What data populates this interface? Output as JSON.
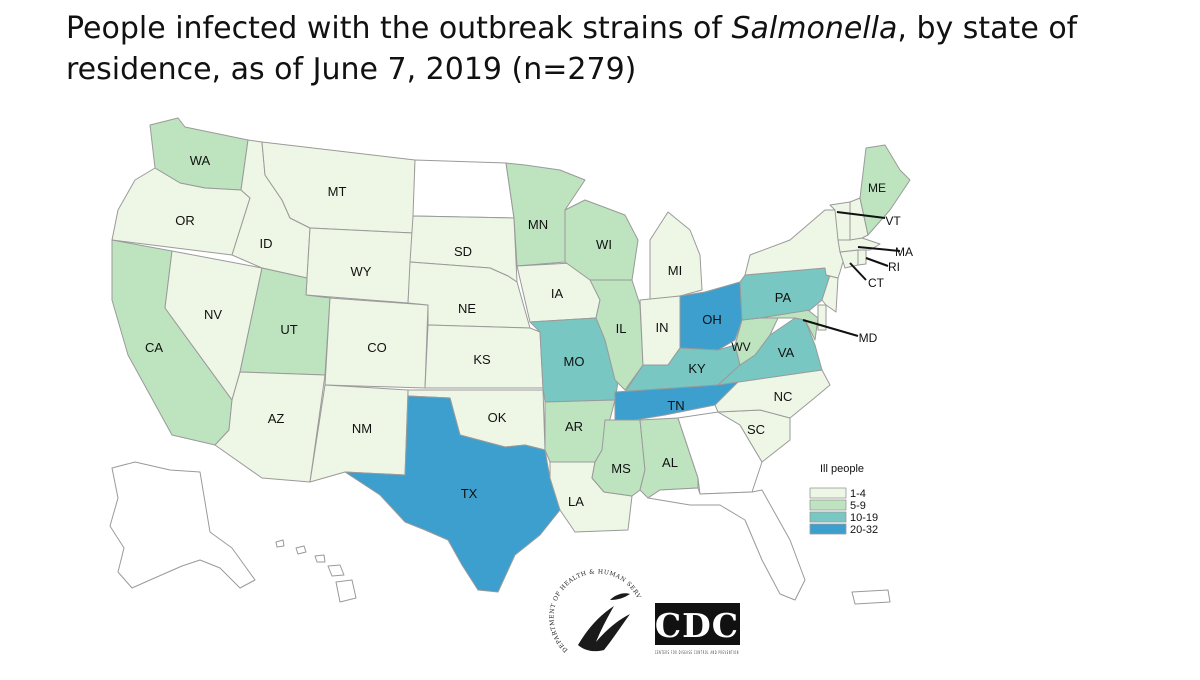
{
  "title": {
    "part1": "People infected with the outbreak strains of ",
    "italic": "Salmonella",
    "part2": ", by state of residence, as of June 7, 2019 (n=279)"
  },
  "colors": {
    "none": "#ffffff",
    "range_1_4": "#eef6e6",
    "range_5_9": "#bde3bf",
    "range_10_19": "#79c7c2",
    "range_20_32": "#3d9fcd",
    "border": "#9a9a9a"
  },
  "legend": {
    "title": "Ill people",
    "ranges": [
      {
        "label": "1-4",
        "color": "#eef6e6"
      },
      {
        "label": "5-9",
        "color": "#bde3bf"
      },
      {
        "label": "10-19",
        "color": "#79c7c2"
      },
      {
        "label": "20-32",
        "color": "#3d9fcd"
      }
    ]
  },
  "states": {
    "WA": {
      "label": "WA",
      "range": "5-9"
    },
    "OR": {
      "label": "OR",
      "range": "1-4"
    },
    "CA": {
      "label": "CA",
      "range": "5-9"
    },
    "NV": {
      "label": "NV",
      "range": "1-4"
    },
    "ID": {
      "label": "ID",
      "range": "1-4"
    },
    "MT": {
      "label": "MT",
      "range": "1-4"
    },
    "WY": {
      "label": "WY",
      "range": "1-4"
    },
    "UT": {
      "label": "UT",
      "range": "5-9"
    },
    "AZ": {
      "label": "AZ",
      "range": "1-4"
    },
    "CO": {
      "label": "CO",
      "range": "1-4"
    },
    "NM": {
      "label": "NM",
      "range": "1-4"
    },
    "ND": {
      "label": "",
      "range": "none"
    },
    "SD": {
      "label": "SD",
      "range": "1-4"
    },
    "NE": {
      "label": "NE",
      "range": "1-4"
    },
    "KS": {
      "label": "KS",
      "range": "1-4"
    },
    "OK": {
      "label": "OK",
      "range": "1-4"
    },
    "TX": {
      "label": "TX",
      "range": "20-32"
    },
    "MN": {
      "label": "MN",
      "range": "5-9"
    },
    "IA": {
      "label": "IA",
      "range": "1-4"
    },
    "MO": {
      "label": "MO",
      "range": "10-19"
    },
    "AR": {
      "label": "AR",
      "range": "5-9"
    },
    "LA": {
      "label": "LA",
      "range": "1-4"
    },
    "WI": {
      "label": "WI",
      "range": "5-9"
    },
    "IL": {
      "label": "IL",
      "range": "5-9"
    },
    "MI": {
      "label": "MI",
      "range": "1-4"
    },
    "IN": {
      "label": "IN",
      "range": "1-4"
    },
    "OH": {
      "label": "OH",
      "range": "20-32"
    },
    "KY": {
      "label": "KY",
      "range": "10-19"
    },
    "TN": {
      "label": "TN",
      "range": "20-32"
    },
    "MS": {
      "label": "MS",
      "range": "5-9"
    },
    "AL": {
      "label": "AL",
      "range": "5-9"
    },
    "GA": {
      "label": "",
      "range": "none"
    },
    "FL": {
      "label": "",
      "range": "none"
    },
    "SC": {
      "label": "SC",
      "range": "1-4"
    },
    "NC": {
      "label": "NC",
      "range": "1-4"
    },
    "VA": {
      "label": "VA",
      "range": "10-19"
    },
    "WV": {
      "label": "WV",
      "range": "5-9"
    },
    "MD": {
      "label": "MD",
      "range": "5-9"
    },
    "PA": {
      "label": "PA",
      "range": "10-19"
    },
    "NY": {
      "label": "",
      "range": "1-4"
    },
    "NJ": {
      "label": "",
      "range": "1-4"
    },
    "DE": {
      "label": "",
      "range": "1-4"
    },
    "CT": {
      "label": "CT",
      "range": "1-4"
    },
    "RI": {
      "label": "RI",
      "range": "1-4"
    },
    "MA": {
      "label": "MA",
      "range": "1-4"
    },
    "VT": {
      "label": "VT",
      "range": "1-4"
    },
    "NH": {
      "label": "",
      "range": "1-4"
    },
    "ME": {
      "label": "ME",
      "range": "5-9"
    },
    "AK": {
      "label": "",
      "range": "none"
    },
    "HI": {
      "label": "",
      "range": "none"
    },
    "PR": {
      "label": "",
      "range": "none"
    }
  },
  "logos": {
    "hhs_seal_text": "DEPARTMENT OF HEALTH & HUMAN SERVICES USA",
    "cdc_text": "CDC",
    "cdc_subtext": "CENTERS FOR DISEASE CONTROL AND PREVENTION"
  }
}
